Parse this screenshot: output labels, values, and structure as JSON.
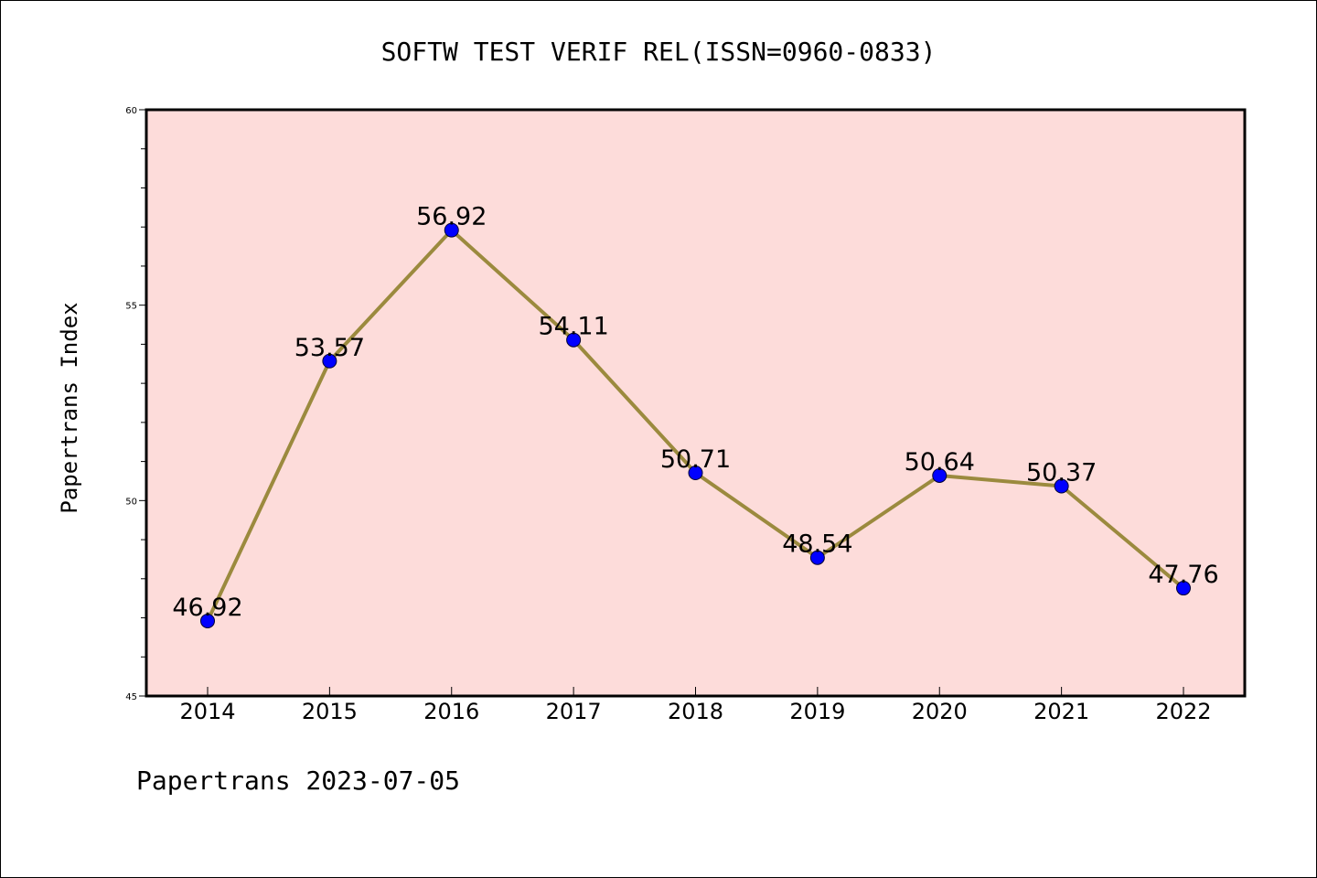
{
  "chart_data": {
    "type": "line",
    "title": "SOFTW TEST VERIF REL(ISSN=0960-0833)",
    "ylabel": "Papertrans Index",
    "xlabel": "",
    "footer": "Papertrans 2023-07-05",
    "categories": [
      "2014",
      "2015",
      "2016",
      "2017",
      "2018",
      "2019",
      "2020",
      "2021",
      "2022"
    ],
    "values": [
      46.92,
      53.57,
      56.92,
      54.11,
      50.71,
      48.54,
      50.64,
      50.37,
      47.76
    ],
    "data_labels": [
      "46.92",
      "53.57",
      "56.92",
      "54.11",
      "50.71",
      "48.54",
      "50.64",
      "50.37",
      "47.76"
    ],
    "ylim": [
      45,
      60
    ],
    "yticks": [
      "45",
      "50",
      "55",
      "60"
    ],
    "grid": false,
    "legend": "none",
    "colors": {
      "plot_background": "#fddcda",
      "line": "#9b8a3e",
      "marker": "#0000ff",
      "axis": "#000000",
      "text": "#000000"
    }
  }
}
